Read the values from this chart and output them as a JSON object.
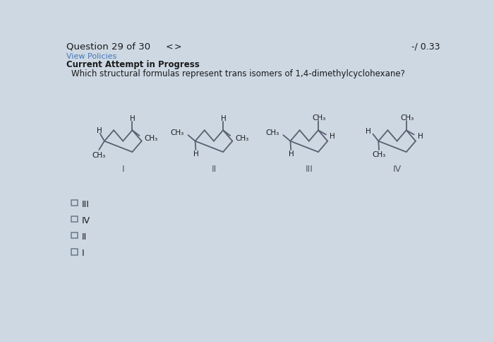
{
  "title_text": "Question 29 of 30",
  "nav": "< >",
  "score_text": "-/ 0.33",
  "view_policies": "View Policies",
  "current_attempt": "Current Attempt in Progress",
  "question": "Which structural formulas represent trans isomers of 1,4-dimethylcyclohexane?",
  "labels": [
    "I",
    "II",
    "III",
    "IV"
  ],
  "options": [
    "III",
    "IV",
    "II",
    "I"
  ],
  "bg_color": "#cdd8e3",
  "line_color": "#5a6070",
  "text_color": "#1a1a1a",
  "label_color": "#555566",
  "link_color": "#4477bb",
  "mol_lw": 1.3,
  "mol_color": "#5a6070",
  "sub_fontsize": 7.5,
  "label_fontsize": 9
}
